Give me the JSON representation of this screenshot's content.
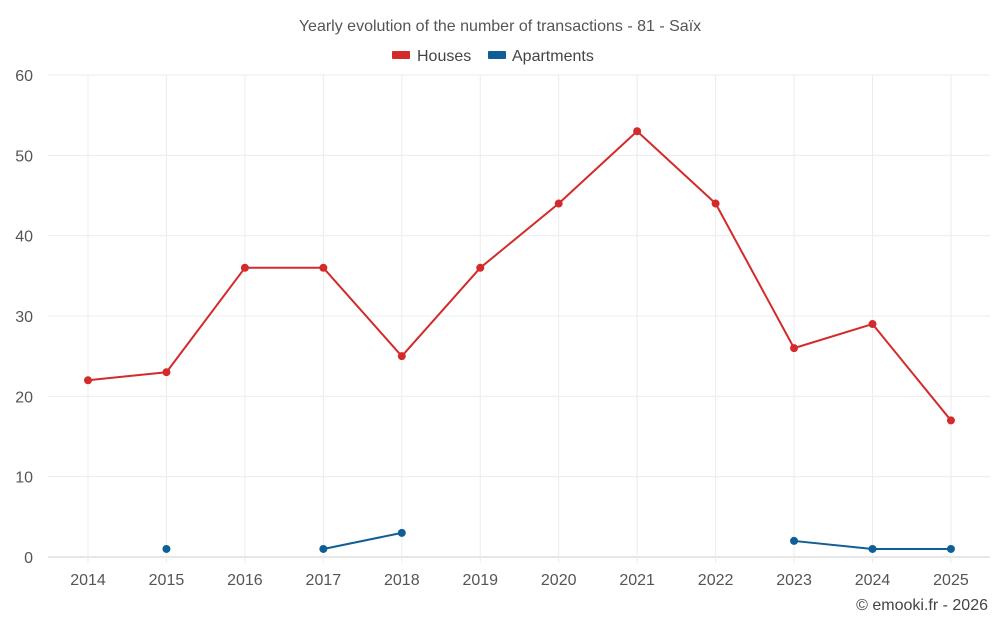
{
  "chart_data": {
    "type": "line",
    "title": "Yearly evolution of the number of transactions - 81 - Saïx",
    "xlabel": "",
    "ylabel": "",
    "categories": [
      "2014",
      "2015",
      "2016",
      "2017",
      "2018",
      "2019",
      "2020",
      "2021",
      "2022",
      "2023",
      "2024",
      "2025"
    ],
    "ylim": [
      0,
      60
    ],
    "yticks": [
      "0",
      "10",
      "20",
      "30",
      "40",
      "50",
      "60"
    ],
    "grid": true,
    "legend_position": "top-center",
    "series": [
      {
        "name": "Houses",
        "color": "#d32b2b",
        "values": [
          22,
          23,
          36,
          36,
          25,
          36,
          44,
          53,
          44,
          26,
          29,
          17
        ]
      },
      {
        "name": "Apartments",
        "color": "#0e5f96",
        "values": [
          null,
          1,
          null,
          1,
          3,
          null,
          null,
          null,
          null,
          2,
          1,
          1
        ]
      }
    ]
  },
  "credit": "© emooki.fr - 2026"
}
